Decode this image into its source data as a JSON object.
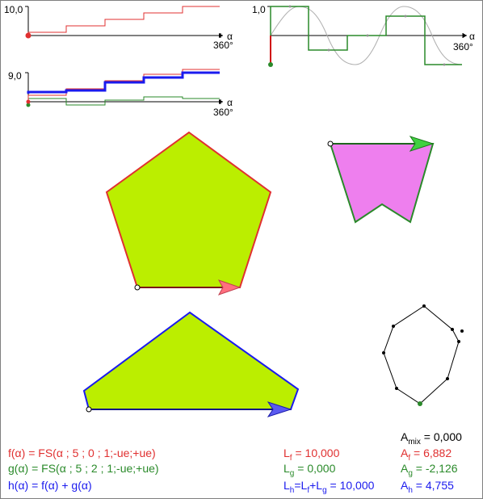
{
  "graphs": {
    "f": {
      "y_label": "10,0",
      "x_label": "α",
      "x_end_label": "360°",
      "color": "#e03030",
      "steps": [
        {
          "x": 0,
          "y": 0
        },
        {
          "x": 72,
          "y": 2
        },
        {
          "x": 144,
          "y": 4
        },
        {
          "x": 216,
          "y": 6
        },
        {
          "x": 288,
          "y": 8
        },
        {
          "x": 360,
          "y": 10
        }
      ]
    },
    "mix": {
      "y_label": "9,0",
      "x_label": "α",
      "x_end_label": "360°",
      "colors": {
        "f": "#e03030",
        "g": "#2a8a2a",
        "h": "#1a1aee"
      }
    },
    "wave": {
      "y_label": "1,0",
      "x_label": "α",
      "x_end_label": "360°",
      "colors": {
        "square": "#2a8a2a",
        "sine": "#b0b0b0",
        "axis_marker": "#d01010"
      }
    }
  },
  "shapes": {
    "pentagon": {
      "fill": "#bbee00",
      "stroke": "#e03030",
      "arrow_color": "#ff6f7f"
    },
    "bowtie": {
      "fill": "#ee7fee",
      "stroke": "#2a8a2a",
      "arrow_color": "#40d040"
    },
    "triangle": {
      "fill": "#bbee00",
      "stroke": "#1a1aee",
      "arrow_color": "#5a5af0"
    },
    "polygon": {
      "stroke": "#000000",
      "base_dot": "#2a8a2a"
    }
  },
  "formulas": {
    "f_def": "f(α) = FS(α ; 5 ; 0 ; 1;-ue;+ue)",
    "g_def": "g(α) = FS(α ; 5 ; 2 ; 1;-ue;+ue)",
    "h_def": "h(α) = f(α) + g(α)"
  },
  "lengths": {
    "lf_main": "L",
    "lf_sub": "f",
    "lf_val": " = 10,000",
    "lg_main": "L",
    "lg_sub": "g",
    "lg_val": " = 0,000",
    "lh_main": "L",
    "lh_sub": "h",
    "lh_eq": "=L",
    "lh_f": "f",
    "lh_plus": "+L",
    "lh_g": "g",
    "lh_val": " = 10,000"
  },
  "areas": {
    "amix_main": "A",
    "amix_sub": "mix",
    "amix_val": " = 0,000",
    "af_main": "A",
    "af_sub": "f",
    "af_val": " = 6,882",
    "ag_main": "A",
    "ag_sub": "g",
    "ag_val": " = -2,126",
    "ah_main": "A",
    "ah_sub": "h",
    "ah_val": " = 4,755"
  },
  "colors": {
    "f": "#e03030",
    "g": "#2a8a2a",
    "h": "#1a1aee",
    "mix": "#000000"
  }
}
